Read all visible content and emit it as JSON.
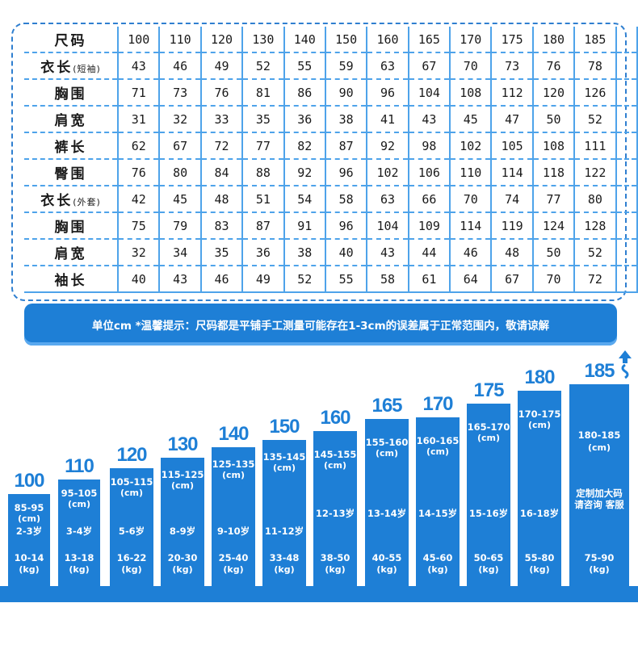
{
  "table": {
    "rows": [
      {
        "label": "尺码",
        "note": "",
        "values": [
          "100",
          "110",
          "120",
          "130",
          "140",
          "150",
          "160",
          "165",
          "170",
          "175",
          "180",
          "185"
        ]
      },
      {
        "label": "衣长",
        "note": "(短袖)",
        "values": [
          "43",
          "46",
          "49",
          "52",
          "55",
          "59",
          "63",
          "67",
          "70",
          "73",
          "76",
          "78"
        ]
      },
      {
        "label": "胸围",
        "note": "",
        "values": [
          "71",
          "73",
          "76",
          "81",
          "86",
          "90",
          "96",
          "104",
          "108",
          "112",
          "120",
          "126"
        ]
      },
      {
        "label": "肩宽",
        "note": "",
        "values": [
          "31",
          "32",
          "33",
          "35",
          "36",
          "38",
          "41",
          "43",
          "45",
          "47",
          "50",
          "52"
        ]
      },
      {
        "label": "裤长",
        "note": "",
        "values": [
          "62",
          "67",
          "72",
          "77",
          "82",
          "87",
          "92",
          "98",
          "102",
          "105",
          "108",
          "111"
        ]
      },
      {
        "label": "臀围",
        "note": "",
        "values": [
          "76",
          "80",
          "84",
          "88",
          "92",
          "96",
          "102",
          "106",
          "110",
          "114",
          "118",
          "122"
        ]
      },
      {
        "label": "衣长",
        "note": "(外套)",
        "values": [
          "42",
          "45",
          "48",
          "51",
          "54",
          "58",
          "63",
          "66",
          "70",
          "74",
          "77",
          "80"
        ]
      },
      {
        "label": "胸围",
        "note": "",
        "values": [
          "75",
          "79",
          "83",
          "87",
          "91",
          "96",
          "104",
          "109",
          "114",
          "119",
          "124",
          "128"
        ]
      },
      {
        "label": "肩宽",
        "note": "",
        "values": [
          "32",
          "34",
          "35",
          "36",
          "38",
          "40",
          "43",
          "44",
          "46",
          "48",
          "50",
          "52"
        ]
      },
      {
        "label": "袖长",
        "note": "",
        "values": [
          "40",
          "43",
          "46",
          "49",
          "52",
          "55",
          "58",
          "61",
          "64",
          "67",
          "70",
          "72"
        ]
      }
    ]
  },
  "note_bar": {
    "text": "单位cm  *温馨提示：尺码都是平铺手工测量可能存在1-3cm的误差属于正常范围内，敬请谅解"
  },
  "bars": [
    {
      "size": "100",
      "height": "85-95",
      "age": "2-3岁",
      "weight": "10-14"
    },
    {
      "size": "110",
      "height": "95-105",
      "age": "3-4岁",
      "weight": "13-18"
    },
    {
      "size": "120",
      "height": "105-115",
      "age": "5-6岁",
      "weight": "16-22"
    },
    {
      "size": "130",
      "height": "115-125",
      "age": "8-9岁",
      "weight": "20-30"
    },
    {
      "size": "140",
      "height": "125-135",
      "age": "9-10岁",
      "weight": "25-40"
    },
    {
      "size": "150",
      "height": "135-145",
      "age": "11-12岁",
      "weight": "33-48"
    },
    {
      "size": "160",
      "height": "145-155",
      "age": "12-13岁",
      "weight": "38-50"
    },
    {
      "size": "165",
      "height": "155-160",
      "age": "13-14岁",
      "weight": "40-55"
    },
    {
      "size": "170",
      "height": "160-165",
      "age": "14-15岁",
      "weight": "45-60"
    },
    {
      "size": "175",
      "height": "165-170",
      "age": "15-16岁",
      "weight": "50-65"
    },
    {
      "size": "180",
      "height": "170-175",
      "age": "16-18岁",
      "weight": "55-80"
    },
    {
      "size": "185",
      "height": "180-185",
      "age": "定制加大码 请咨询 客服",
      "weight": "75-90"
    }
  ],
  "units": {
    "height": "(cm)",
    "weight": "(kg)"
  },
  "colors": {
    "accent": "#1e7fd6",
    "grid": "#4ea3ea"
  }
}
